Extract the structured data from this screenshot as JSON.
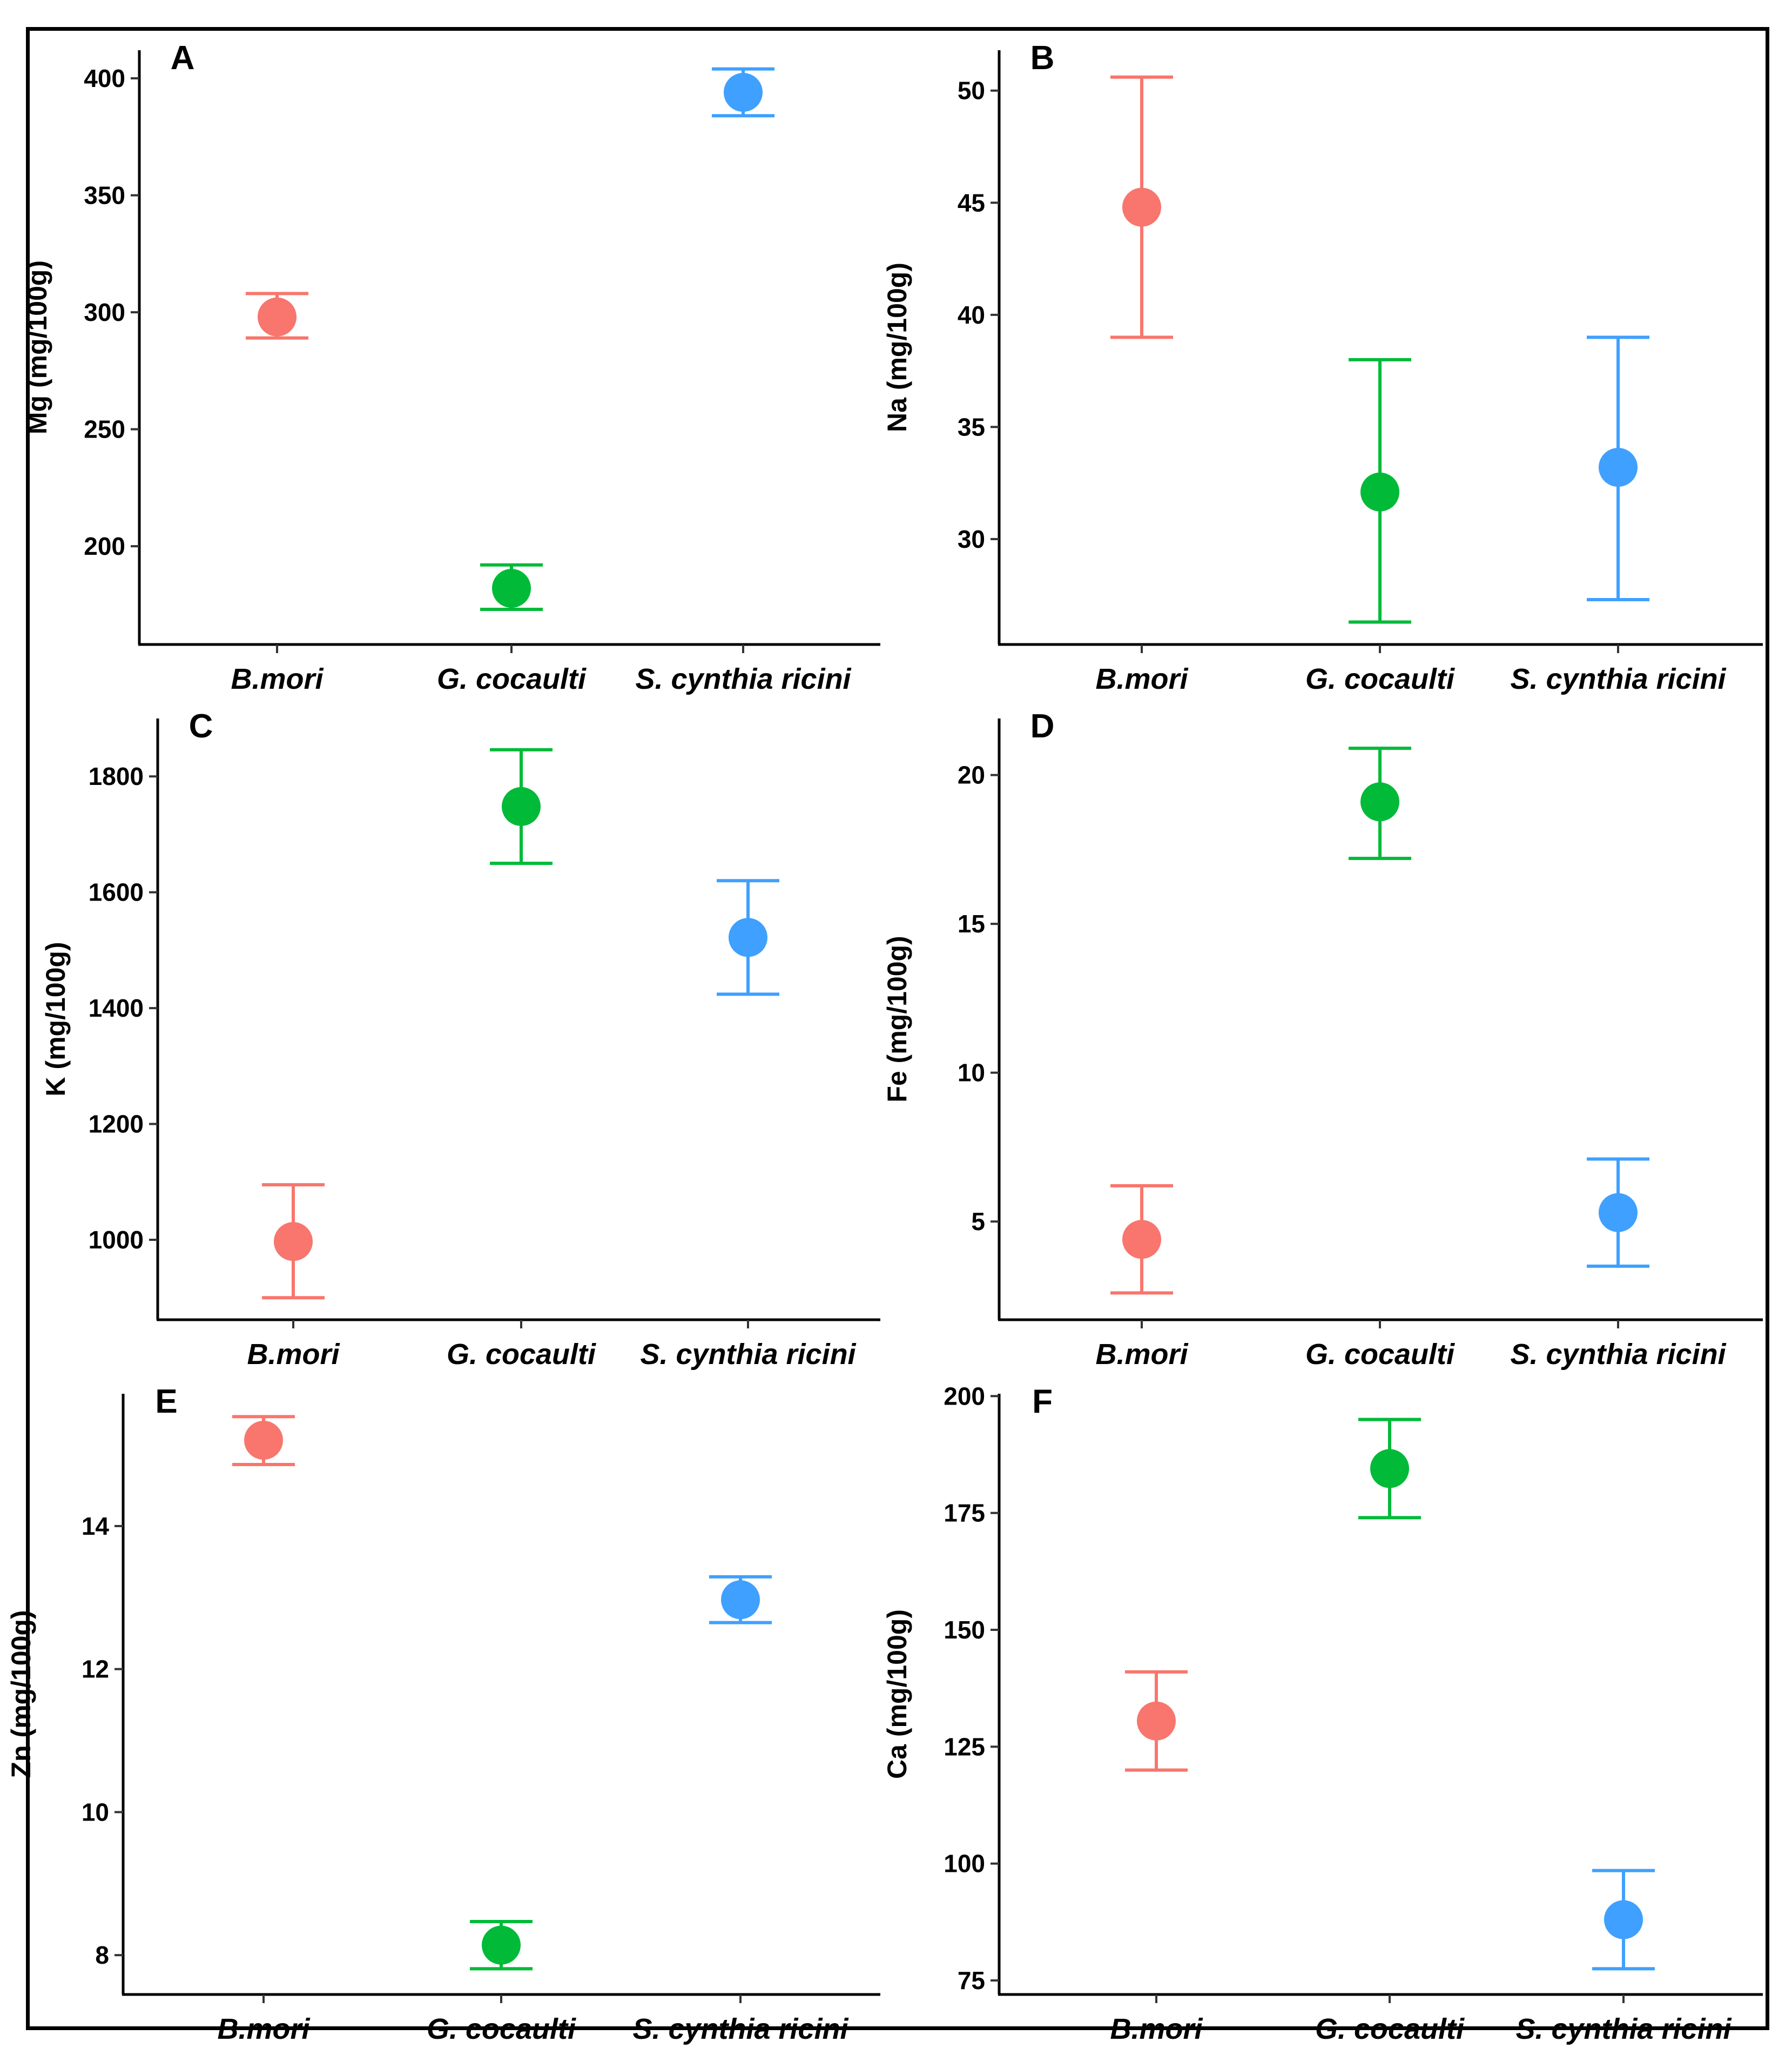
{
  "chart_data": [
    {
      "type": "scatter",
      "panel": "A",
      "categories": [
        "B.mori",
        "G. cocaulti",
        "S. cynthia ricini"
      ],
      "ylabel": "Mg (mg/100g)",
      "ylim": [
        158,
        412
      ],
      "yticks": [
        200,
        250,
        300,
        350,
        400
      ],
      "means": [
        298,
        182,
        394
      ],
      "lower": [
        289,
        173,
        384
      ],
      "upper": [
        308,
        192,
        404
      ],
      "colors": [
        "#F8766D",
        "#00BA38",
        "#3FA0FF"
      ]
    },
    {
      "type": "scatter",
      "panel": "B",
      "categories": [
        "B.mori",
        "G. cocaulti",
        "S. cynthia ricini"
      ],
      "ylabel": "Na (mg/100g)",
      "ylim": [
        25.3,
        51.8
      ],
      "yticks": [
        30,
        35,
        40,
        45,
        50
      ],
      "means": [
        44.8,
        32.1,
        33.2
      ],
      "lower": [
        39.0,
        26.3,
        27.3
      ],
      "upper": [
        50.6,
        38.0,
        39.0
      ],
      "colors": [
        "#F8766D",
        "#00BA38",
        "#3FA0FF"
      ]
    },
    {
      "type": "scatter",
      "panel": "C",
      "categories": [
        "B.mori",
        "G. cocaulti",
        "S. cynthia ricini"
      ],
      "ylabel": "K (mg/100g)",
      "ylim": [
        862,
        1900
      ],
      "yticks": [
        1000,
        1200,
        1400,
        1600,
        1800
      ],
      "means": [
        997,
        1748,
        1522
      ],
      "lower": [
        900,
        1650,
        1424
      ],
      "upper": [
        1095,
        1846,
        1620
      ],
      "colors": [
        "#F8766D",
        "#00BA38",
        "#3FA0FF"
      ]
    },
    {
      "type": "scatter",
      "panel": "D",
      "categories": [
        "B.mori",
        "G. cocaulti",
        "S. cynthia ricini"
      ],
      "ylabel": "Fe (mg/100g)",
      "ylim": [
        1.7,
        21.9
      ],
      "yticks": [
        5,
        10,
        15,
        20
      ],
      "means": [
        4.4,
        19.1,
        5.3
      ],
      "lower": [
        2.6,
        17.2,
        3.5
      ],
      "upper": [
        6.2,
        20.9,
        7.1
      ],
      "colors": [
        "#F8766D",
        "#00BA38",
        "#3FA0FF"
      ]
    },
    {
      "type": "scatter",
      "panel": "E",
      "categories": [
        "B.mori",
        "G. cocaulti",
        "S. cynthia ricini"
      ],
      "ylabel": "Zn (mg/100g)",
      "ylim": [
        7.45,
        15.85
      ],
      "yticks": [
        8,
        10,
        12,
        14
      ],
      "means": [
        15.2,
        8.14,
        12.97
      ],
      "lower": [
        14.86,
        7.81,
        12.65
      ],
      "upper": [
        15.53,
        8.47,
        13.29
      ],
      "colors": [
        "#F8766D",
        "#00BA38",
        "#3FA0FF"
      ]
    },
    {
      "type": "scatter",
      "panel": "F",
      "categories": [
        "B.mori",
        "G. cocaulti",
        "S. cynthia ricini"
      ],
      "ylabel": "Ca (mg/100g)",
      "ylim": [
        72,
        200.5
      ],
      "yticks": [
        75,
        100,
        125,
        150,
        175,
        200
      ],
      "means": [
        130.5,
        184.5,
        88.0
      ],
      "lower": [
        120.0,
        174.0,
        77.5
      ],
      "upper": [
        141.0,
        195.0,
        98.5
      ],
      "colors": [
        "#F8766D",
        "#00BA38",
        "#3FA0FF"
      ]
    }
  ]
}
